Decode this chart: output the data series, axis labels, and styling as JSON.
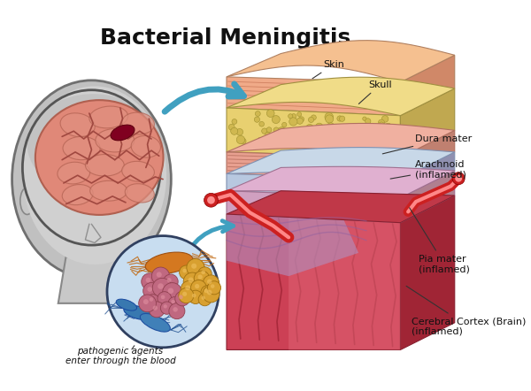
{
  "title": "Bacterial Meningitis",
  "title_fontsize": 18,
  "title_fontweight": "bold",
  "background_color": "#ffffff",
  "labels": {
    "skin": "Skin",
    "skull": "Skull",
    "dura_mater": "Dura mater",
    "arachnoid": "Arachnoid\n(inflamed)",
    "pia_mater": "Pia mater\n(inflamed)",
    "cerebral_cortex": "Cerebral Cortex (Brain)\n(inflamed)",
    "pathogenic": "pathogenic agents\nenter through the blood"
  },
  "colors": {
    "skin_front": "#f0b090",
    "skin_top": "#f5c8a0",
    "skin_side": "#d09070",
    "skull_front": "#e8d080",
    "skull_top": "#f0dc90",
    "skull_side": "#c0a850",
    "dura_front": "#e8b0a0",
    "dura_top": "#f0c0b0",
    "dura_side": "#c09080",
    "arach_front": "#c0cce0",
    "arach_top": "#d0dce8",
    "arach_side": "#a0b0c8",
    "pia_front": "#d8a0b8",
    "pia_top": "#e0b0c8",
    "pia_side": "#b88098",
    "brain_front": "#d05060",
    "brain_top": "#c04050",
    "brain_side": "#a03040",
    "blood_vessel": "#cc2020",
    "blood_vessel_light": "#ff8888",
    "arrow_blue": "#40a0c0",
    "bacteria_orange": "#d08020",
    "bacteria_purple": "#c06080",
    "bacteria_gold": "#d09030",
    "bacteria_blue": "#3070a0",
    "head_fill_top": "#b8b8b8",
    "head_fill_bot": "#d0d0d0",
    "brain_fill": "#e08878",
    "brain_fold": "#c06050",
    "dark_red_spot": "#800020",
    "bact_bg": "#c8ddf0"
  }
}
